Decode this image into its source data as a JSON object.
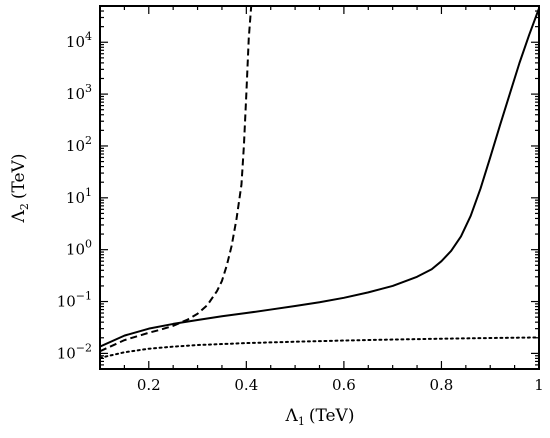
{
  "chart_data": {
    "type": "line",
    "title": "",
    "xlabel": {
      "symbol": "Λ",
      "sub": "1",
      "unit": "(TeV)"
    },
    "ylabel": {
      "symbol": "Λ",
      "sub": "2",
      "unit": "(TeV)"
    },
    "xlim": [
      0.1,
      1.0
    ],
    "ylim": [
      0.005,
      50000
    ],
    "yscale": "log",
    "grid": false,
    "legend": "none",
    "x_ticks": [
      {
        "value": 0.2,
        "label": "0.2"
      },
      {
        "value": 0.4,
        "label": "0.4"
      },
      {
        "value": 0.6,
        "label": "0.6"
      },
      {
        "value": 0.8,
        "label": "0.8"
      },
      {
        "value": 1.0,
        "label": "1"
      }
    ],
    "y_ticks": [
      {
        "value": 0.01,
        "base": "10",
        "exp": "−2"
      },
      {
        "value": 0.1,
        "base": "10",
        "exp": "−1"
      },
      {
        "value": 1,
        "base": "10",
        "exp": "0"
      },
      {
        "value": 10,
        "base": "10",
        "exp": "1"
      },
      {
        "value": 100,
        "base": "10",
        "exp": "2"
      },
      {
        "value": 1000,
        "base": "10",
        "exp": "3"
      },
      {
        "value": 10000,
        "base": "10",
        "exp": "4"
      }
    ],
    "series": [
      {
        "style": "solid",
        "points": [
          [
            0.1,
            0.0135
          ],
          [
            0.15,
            0.022
          ],
          [
            0.2,
            0.03
          ],
          [
            0.25,
            0.037
          ],
          [
            0.3,
            0.044
          ],
          [
            0.35,
            0.052
          ],
          [
            0.4,
            0.06
          ],
          [
            0.45,
            0.07
          ],
          [
            0.5,
            0.082
          ],
          [
            0.55,
            0.097
          ],
          [
            0.6,
            0.118
          ],
          [
            0.65,
            0.15
          ],
          [
            0.7,
            0.2
          ],
          [
            0.75,
            0.3
          ],
          [
            0.78,
            0.42
          ],
          [
            0.8,
            0.6
          ],
          [
            0.82,
            0.95
          ],
          [
            0.84,
            1.8
          ],
          [
            0.86,
            4.5
          ],
          [
            0.88,
            15
          ],
          [
            0.9,
            60
          ],
          [
            0.92,
            250
          ],
          [
            0.94,
            1000
          ],
          [
            0.96,
            4000
          ],
          [
            0.98,
            14000
          ],
          [
            1.0,
            45000
          ]
        ]
      },
      {
        "style": "dashed",
        "points": [
          [
            0.1,
            0.011
          ],
          [
            0.15,
            0.018
          ],
          [
            0.2,
            0.025
          ],
          [
            0.22,
            0.028
          ],
          [
            0.25,
            0.034
          ],
          [
            0.28,
            0.045
          ],
          [
            0.3,
            0.058
          ],
          [
            0.32,
            0.085
          ],
          [
            0.34,
            0.16
          ],
          [
            0.35,
            0.25
          ],
          [
            0.36,
            0.5
          ],
          [
            0.37,
            1.2
          ],
          [
            0.38,
            4
          ],
          [
            0.39,
            18
          ],
          [
            0.395,
            100
          ],
          [
            0.4,
            1000
          ],
          [
            0.405,
            12000
          ],
          [
            0.41,
            50000
          ]
        ]
      },
      {
        "style": "dotted",
        "points": [
          [
            0.1,
            0.0082
          ],
          [
            0.15,
            0.0105
          ],
          [
            0.2,
            0.0123
          ],
          [
            0.25,
            0.0135
          ],
          [
            0.3,
            0.0145
          ],
          [
            0.4,
            0.0158
          ],
          [
            0.5,
            0.0168
          ],
          [
            0.6,
            0.0177
          ],
          [
            0.7,
            0.0185
          ],
          [
            0.8,
            0.0192
          ],
          [
            0.9,
            0.0198
          ],
          [
            1.0,
            0.0203
          ]
        ]
      }
    ]
  }
}
